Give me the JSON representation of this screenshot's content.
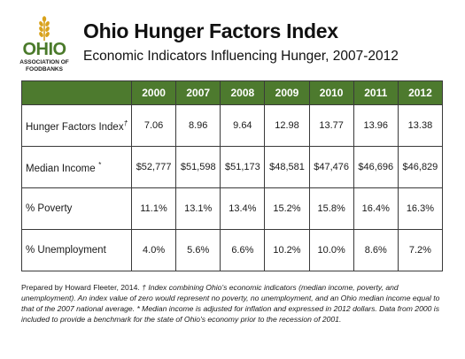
{
  "logo": {
    "word": "OHIO",
    "subline1": "ASSOCIATION OF",
    "subline2": "FOODBANKS",
    "mark": "wheat-icon"
  },
  "header": {
    "title": "Ohio Hunger Factors Index",
    "subtitle": "Economic Indicators Influencing Hunger, 2007-2012"
  },
  "colors": {
    "header_green": "#4d7a2e",
    "logo_green": "#4a7a2a",
    "logo_gold": "#d9a21b"
  },
  "table": {
    "columns": [
      "2000",
      "2007",
      "2008",
      "2009",
      "2010",
      "2011",
      "2012"
    ],
    "rows": [
      {
        "label": "Hunger Factors Index",
        "mark": "†",
        "values": [
          "7.06",
          "8.96",
          "9.64",
          "12.98",
          "13.77",
          "13.96",
          "13.38"
        ]
      },
      {
        "label": "Median Income",
        "mark": "*",
        "values": [
          "$52,777",
          "$51,598",
          "$51,173",
          "$48,581",
          "$47,476",
          "$46,696",
          "$46,829"
        ]
      },
      {
        "label": "% Poverty",
        "mark": "",
        "values": [
          "11.1%",
          "13.1%",
          "13.4%",
          "15.2%",
          "15.8%",
          "16.4%",
          "16.3%"
        ]
      },
      {
        "label": "% Unemployment",
        "mark": "",
        "values": [
          "4.0%",
          "5.6%",
          "6.6%",
          "10.2%",
          "10.0%",
          "8.6%",
          "7.2%"
        ]
      }
    ]
  },
  "notes": {
    "prepared": "Prepared by Howard Fleeter, 2014.",
    "dagger": "†",
    "dagger_note": "Index combining Ohio's economic indicators (median income, poverty, and unemployment). An index value of zero would represent no poverty, no unemployment, and an Ohio median income equal to that of the 2007 national average.",
    "star_note": "* Median income is adjusted for inflation and expressed in 2012 dollars. Data from 2000 is included to provide a benchmark for the state of Ohio's economy prior to the recession of 2001."
  }
}
